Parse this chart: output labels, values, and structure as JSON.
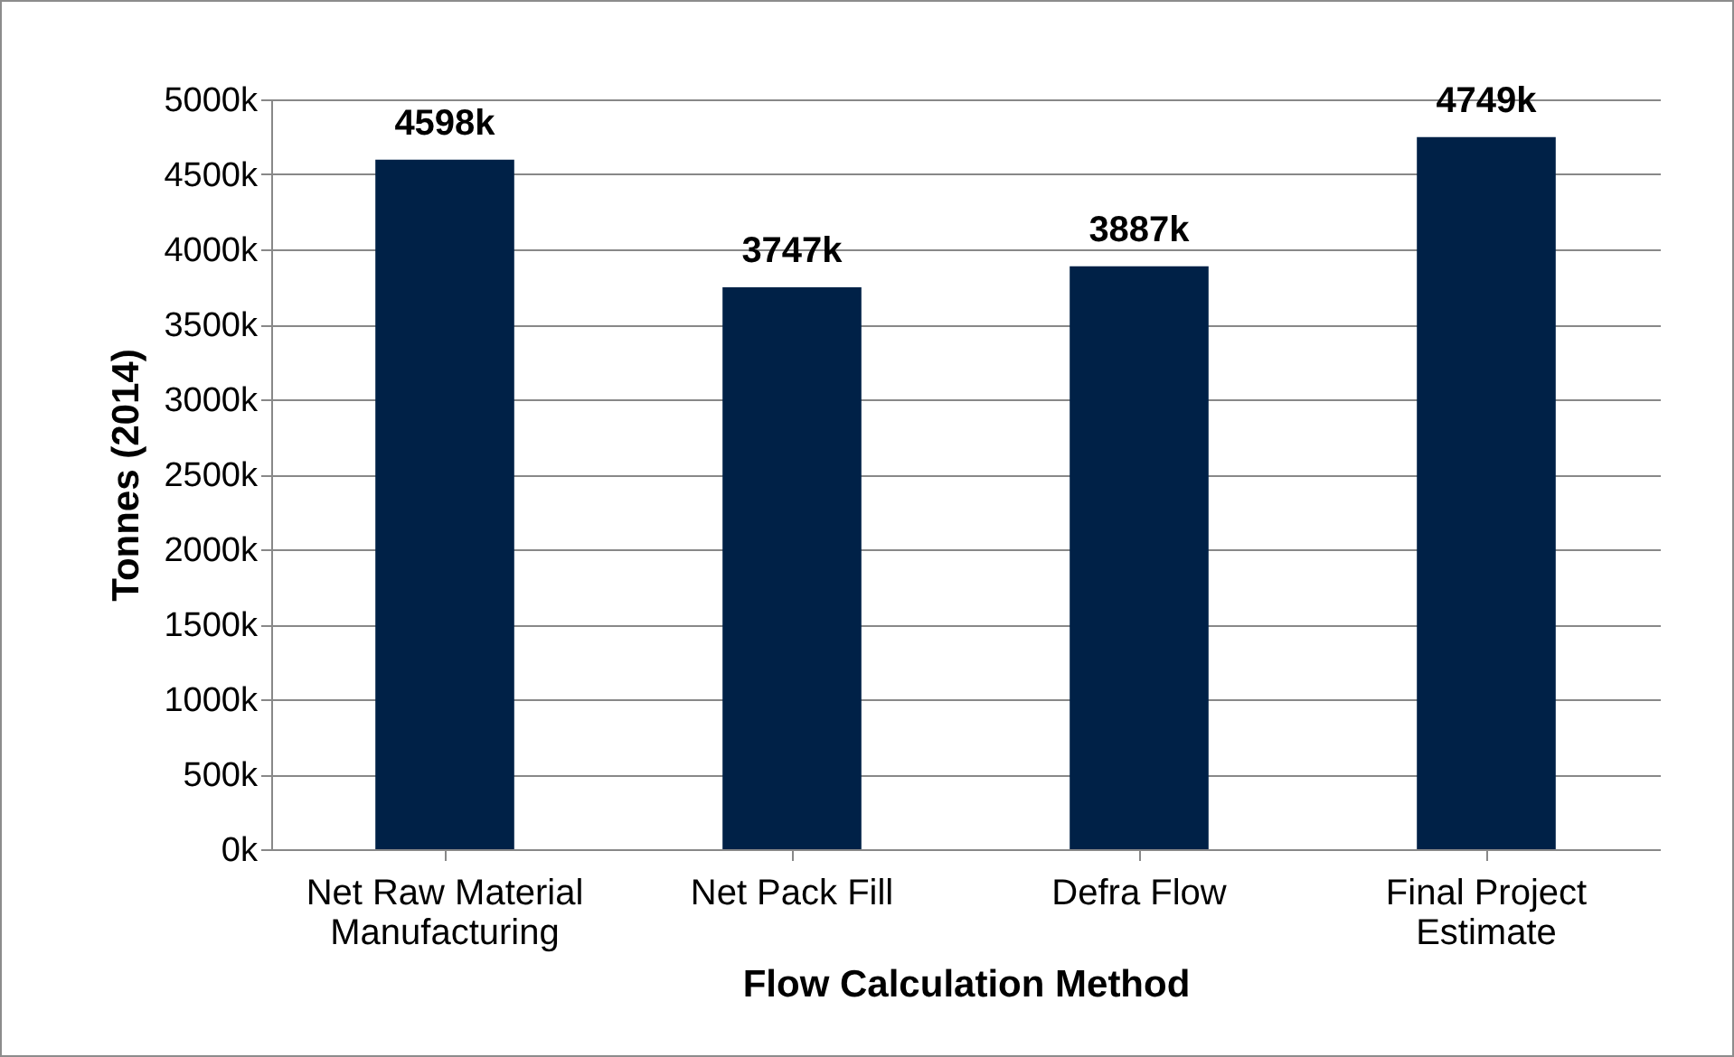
{
  "chart_data": {
    "type": "bar",
    "xlabel": "Flow Calculation Method",
    "ylabel": "Tonnes (2014)",
    "categories": [
      "Net Raw Material Manufacturing",
      "Net Pack Fill",
      "Defra Flow",
      "Final Project Estimate"
    ],
    "values": [
      4598,
      3747,
      3887,
      4749
    ],
    "value_labels": [
      "4598k",
      "3747k",
      "3887k",
      "4749k"
    ],
    "color": "#002147",
    "ylim": [
      0,
      5000
    ],
    "yticks": [
      {
        "value": 0,
        "label": "0k"
      },
      {
        "value": 500,
        "label": "500k"
      },
      {
        "value": 1000,
        "label": "1000k"
      },
      {
        "value": 1500,
        "label": "1500k"
      },
      {
        "value": 2000,
        "label": "2000k"
      },
      {
        "value": 2500,
        "label": "2500k"
      },
      {
        "value": 3000,
        "label": "3000k"
      },
      {
        "value": 3500,
        "label": "3500k"
      },
      {
        "value": 4000,
        "label": "4000k"
      },
      {
        "value": 4500,
        "label": "4500k"
      },
      {
        "value": 5000,
        "label": "5000k"
      }
    ],
    "grid": true
  }
}
